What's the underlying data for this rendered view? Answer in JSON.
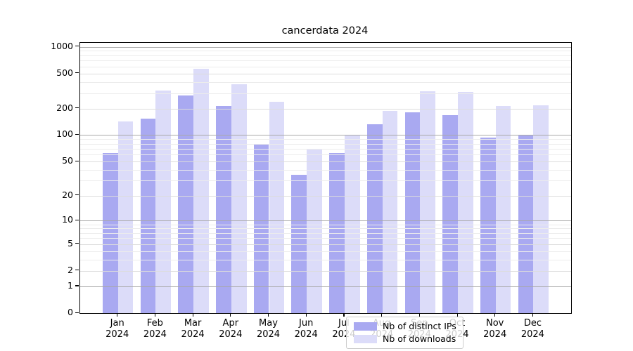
{
  "title": "cancerdata 2024",
  "chart_data": {
    "type": "bar",
    "title": "cancerdata 2024",
    "categories": [
      "Jan 2024",
      "Feb 2024",
      "Mar 2024",
      "Apr 2024",
      "May 2024",
      "Jun 2024",
      "Jul 2024",
      "Aug 2024",
      "Sep 2024",
      "Oct 2024",
      "Nov 2024",
      "Dec 2024"
    ],
    "x_tick_line1": [
      "Jan",
      "Feb",
      "Mar",
      "Apr",
      "May",
      "Jun",
      "Jul",
      "Aug",
      "Sep",
      "Oct",
      "Nov",
      "Dec"
    ],
    "x_tick_line2": [
      "2024",
      "2024",
      "2024",
      "2024",
      "2024",
      "2024",
      "2024",
      "2024",
      "2024",
      "2024",
      "2024",
      "2024"
    ],
    "series": [
      {
        "name": "Nb of distinct IPs",
        "color": "#a9a9f1",
        "values": [
          62,
          154,
          281,
          213,
          79,
          35,
          63,
          132,
          183,
          168,
          93,
          101
        ]
      },
      {
        "name": "Nb of downloads",
        "color": "#dcdcf9",
        "values": [
          143,
          320,
          560,
          378,
          240,
          70,
          101,
          190,
          312,
          310,
          213,
          218
        ]
      }
    ],
    "yscale": "log1p",
    "ylim": [
      0,
      1000
    ],
    "y_ticks": [
      0,
      1,
      2,
      5,
      10,
      20,
      50,
      100,
      200,
      500,
      1000
    ],
    "y_minor_gridlines": [
      3,
      4,
      6,
      7,
      8,
      9,
      30,
      40,
      60,
      70,
      80,
      90,
      300,
      400,
      600,
      700,
      800,
      900
    ],
    "y_mid_gridlines": [
      2,
      5,
      20,
      50,
      200,
      500
    ],
    "y_decade_gridlines": [
      1,
      10,
      100,
      1000
    ],
    "grid": "on",
    "legend_position": "lower center"
  },
  "colors": {
    "background": "#ffffff",
    "spine": "#000000",
    "grid_minor": "#ececec",
    "grid_mid": "#dcdcdc",
    "grid_decade": "#a8a8a8",
    "legend_border": "#cccccc"
  }
}
